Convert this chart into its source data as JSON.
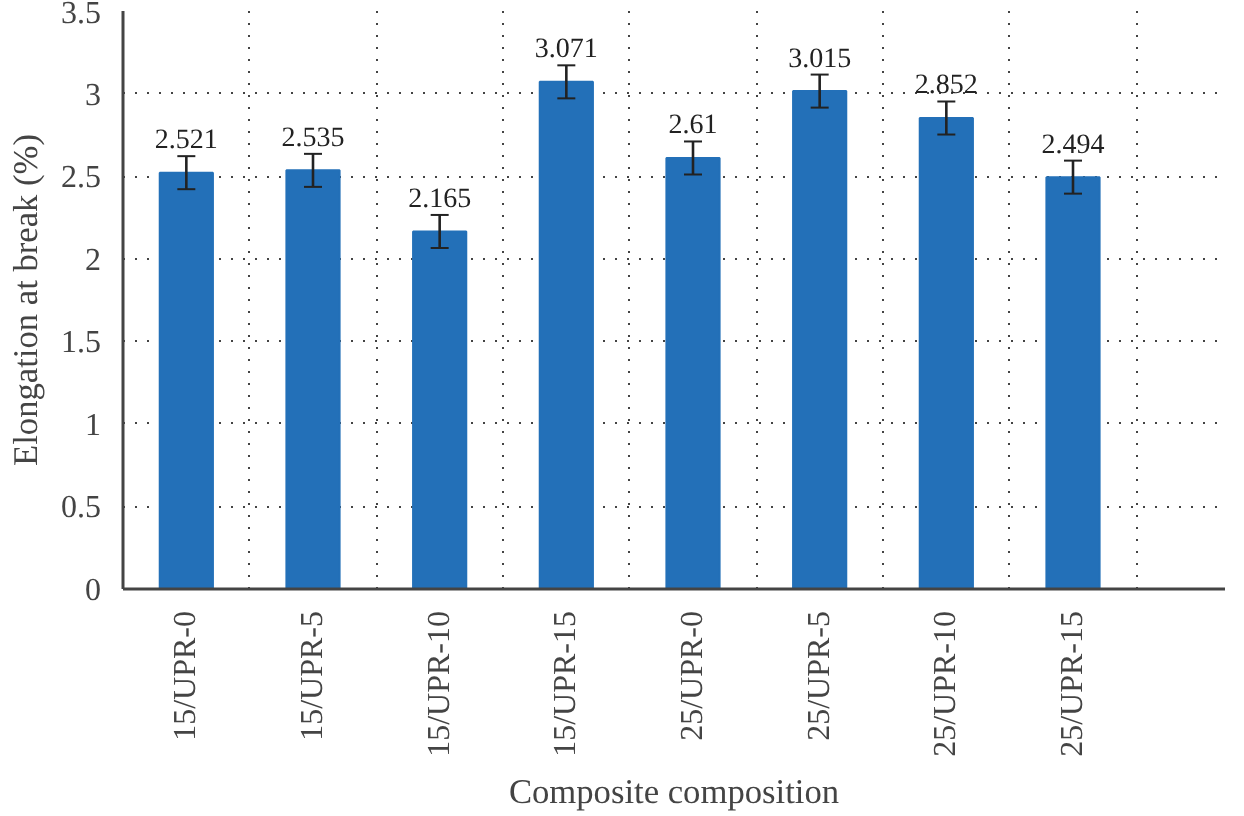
{
  "chart_data": {
    "type": "bar",
    "xlabel": "Composite composition",
    "ylabel": "Elongation at break (%)",
    "categories": [
      "15/UPR-0",
      "15/UPR-5",
      "15/UPR-10",
      "15/UPR-15",
      "25/UPR-0",
      "25/UPR-5",
      "25/UPR-10",
      "25/UPR-15"
    ],
    "values": [
      2.521,
      2.535,
      2.165,
      3.071,
      2.61,
      3.015,
      2.852,
      2.494
    ],
    "errors": [
      0.1,
      0.1,
      0.1,
      0.1,
      0.1,
      0.1,
      0.1,
      0.1
    ],
    "color": "#2370b8",
    "data_labels": true,
    "grid": true,
    "ylim": [
      0,
      3.5
    ],
    "yticks": [
      0,
      0.5,
      1,
      1.5,
      2,
      2.5,
      3,
      3.5
    ]
  }
}
